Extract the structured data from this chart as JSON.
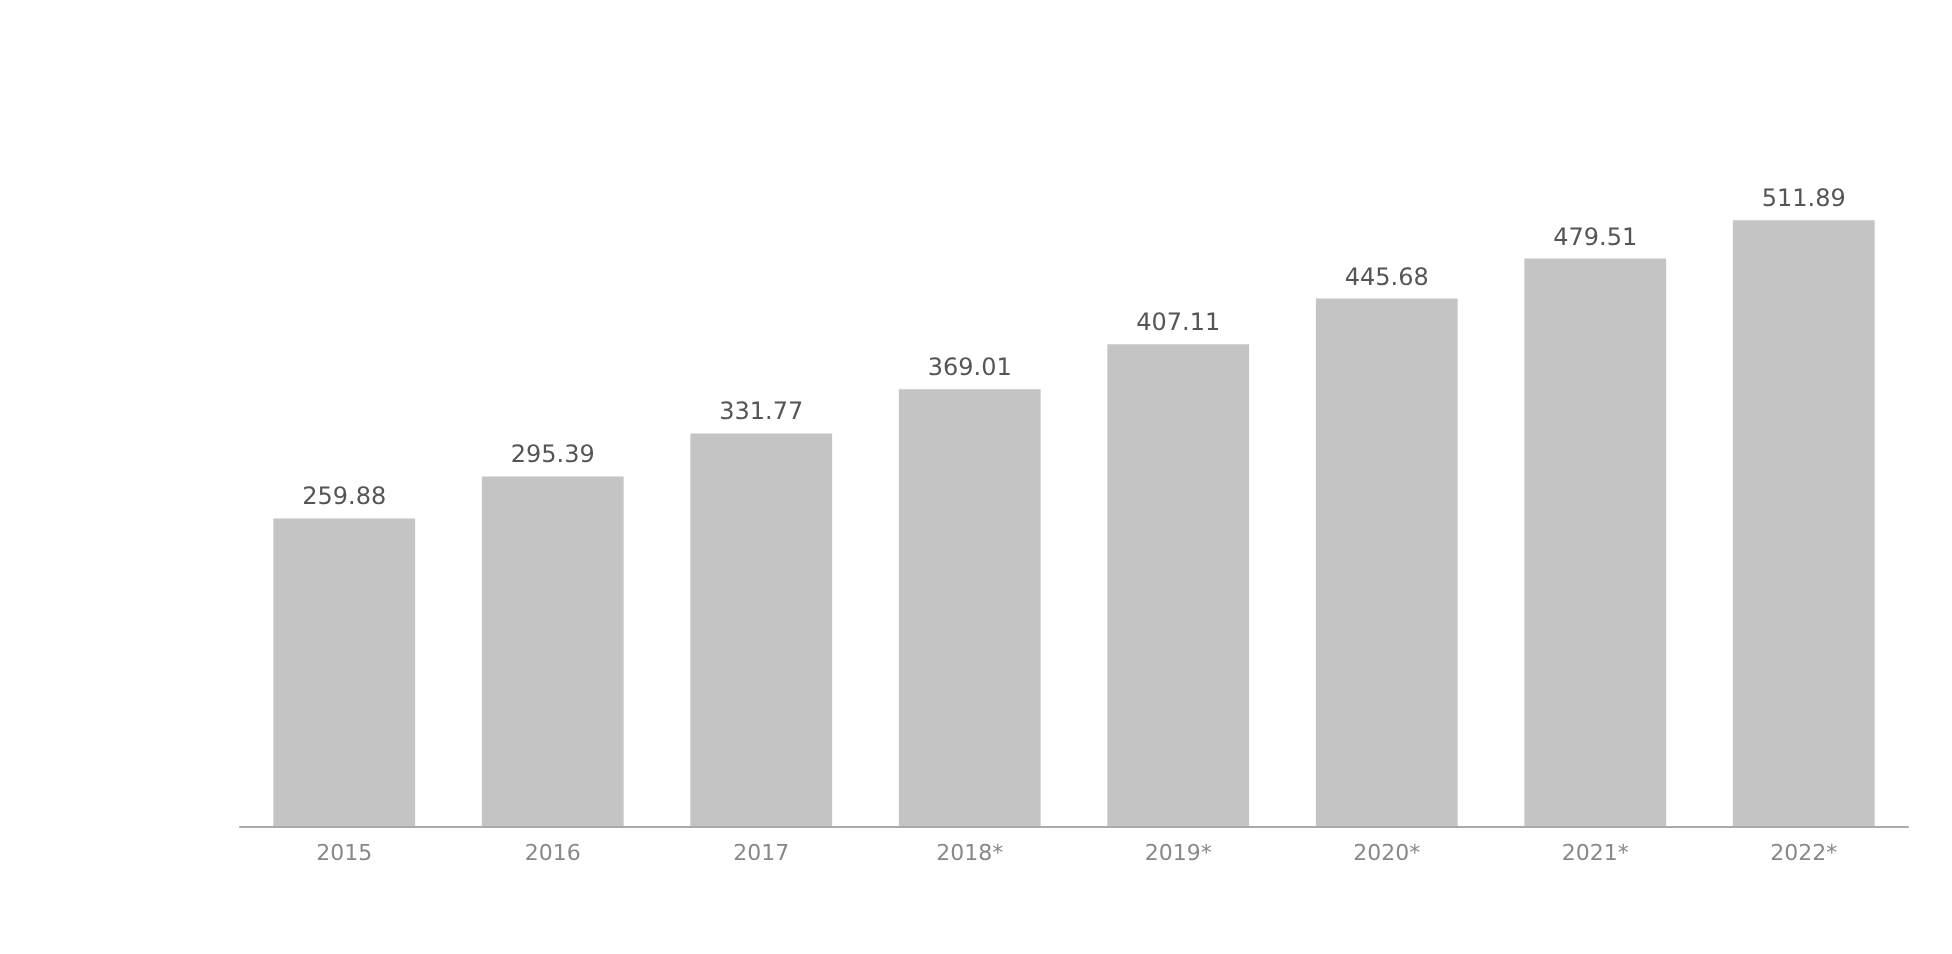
{
  "chart_data": {
    "type": "bar",
    "categories": [
      "2015",
      "2016",
      "2017",
      "2018*",
      "2019*",
      "2020*",
      "2021*",
      "2022*"
    ],
    "values": [
      259.88,
      295.39,
      331.77,
      369.01,
      407.11,
      445.68,
      479.51,
      511.89
    ],
    "color": "#c4c4c4",
    "data_labels": true
  }
}
